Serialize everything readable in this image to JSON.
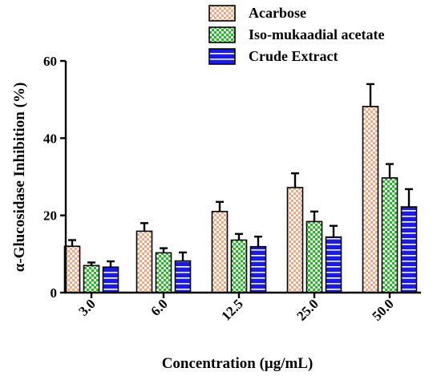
{
  "chart_data": {
    "type": "bar",
    "xlabel": "Concentration (μg/mL)",
    "ylabel": "α-Glucosidase Inhibition (%)",
    "ylim": [
      0,
      60
    ],
    "yticks": [
      "0",
      "20",
      "40",
      "60"
    ],
    "categories": [
      "3.0",
      "6.0",
      "12.5",
      "25.0",
      "50.0"
    ],
    "legend_position": "top-right",
    "series": [
      {
        "name": "Acarbose",
        "values": [
          12.0,
          15.9,
          21.0,
          27.2,
          48.2
        ],
        "errors": [
          1.6,
          2.1,
          2.5,
          3.7,
          5.8
        ],
        "color": "#f4a582",
        "pattern": "checkered-orange"
      },
      {
        "name": "Iso-mukaadial acetate",
        "values": [
          7.0,
          10.3,
          13.6,
          18.4,
          29.7
        ],
        "errors": [
          0.8,
          1.2,
          1.6,
          2.6,
          3.6
        ],
        "color": "#22bb22",
        "pattern": "checkered-green"
      },
      {
        "name": "Crude Extract",
        "values": [
          6.6,
          8.2,
          11.9,
          14.4,
          22.2
        ],
        "errors": [
          1.5,
          2.2,
          2.6,
          2.9,
          4.6
        ],
        "color": "#1a1aee",
        "pattern": "horizontal-stripes-blue"
      }
    ]
  }
}
